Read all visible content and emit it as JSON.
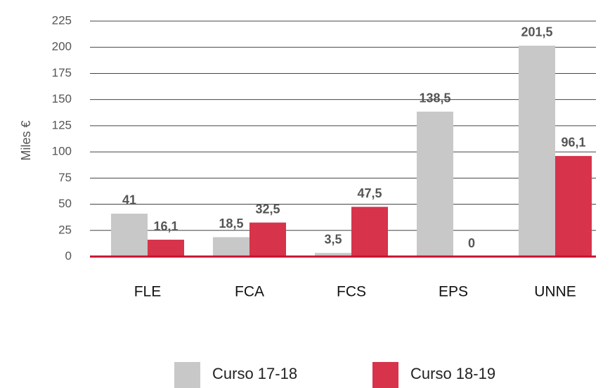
{
  "chart_data": {
    "type": "bar",
    "y_label": "Miles €",
    "categories": [
      "FLE",
      "FCA",
      "FCS",
      "EPS",
      "UNNE"
    ],
    "series": [
      {
        "name": "Curso 17-18",
        "color": "#c8c8c8",
        "values": [
          41,
          18.5,
          3.5,
          138.5,
          201.5
        ],
        "value_labels": [
          "41",
          "18,5",
          "3,5",
          "138,5",
          "201,5"
        ]
      },
      {
        "name": "Curso 18-19",
        "color": "#d7334a",
        "values": [
          16.1,
          32.5,
          47.5,
          0,
          96.1
        ],
        "value_labels": [
          "16,1",
          "32,5",
          "47,5",
          "0",
          "96,1"
        ]
      }
    ],
    "ylim": [
      0,
      225
    ],
    "yticks": [
      0,
      25,
      50,
      75,
      100,
      125,
      150,
      175,
      200,
      225
    ],
    "grid": true
  }
}
